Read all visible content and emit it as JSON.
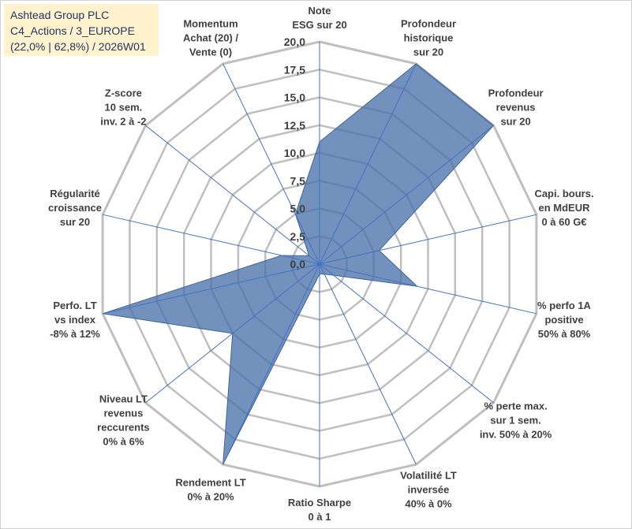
{
  "header": {
    "line1": "Ashtead Group PLC",
    "line2": "C4_Actions / 3_EUROPE",
    "line3": "(22,0% | 62,8%) / 2026W01"
  },
  "chart_data": {
    "type": "radar",
    "rmin": 0,
    "rmax": 20,
    "ticks": [
      "0,0",
      "2,5",
      "5,0",
      "7,5",
      "10,0",
      "12,5",
      "15,0",
      "17,5",
      "20,0"
    ],
    "grid": true,
    "axes": [
      [
        "Note",
        "ESG sur 20"
      ],
      [
        "Profondeur",
        "historique",
        "sur 20"
      ],
      [
        "Profondeur",
        "revenus",
        "sur 20"
      ],
      [
        "Capi. bours.",
        "en MdEUR",
        "0 à 60 G€"
      ],
      [
        "% perfo 1A",
        "positive",
        "50% à 80%"
      ],
      [
        "% perte max.",
        "sur 1 sem.",
        "inv. 50% à 20%"
      ],
      [
        "Volatilité LT",
        "inversée",
        "40% à 0%"
      ],
      [
        "Ratio Sharpe",
        "0 à 1"
      ],
      [
        "Rendement LT",
        "0% à 20%"
      ],
      [
        "Niveau LT",
        "revenus",
        "reccurents",
        "0% à 6%"
      ],
      [
        "Perfo. LT",
        "vs index",
        "-8% à 12%"
      ],
      [
        "Régularité",
        "croissance",
        "sur 20"
      ],
      [
        "Z-score",
        "10 sem.",
        "inv. 2 à -2"
      ],
      [
        "Momentum",
        "Achat (20) /",
        "Vente (0)"
      ]
    ],
    "series": [
      {
        "values": [
          11,
          20,
          20,
          5.5,
          9,
          1.6,
          1,
          0.9,
          20,
          10,
          20,
          3.5,
          1.2,
          5
        ]
      }
    ],
    "colors": {
      "fill": "#4a72aa",
      "stroke": "#3f66a0",
      "grid": "#bfbfbf",
      "spoke": "#4472c4"
    }
  }
}
